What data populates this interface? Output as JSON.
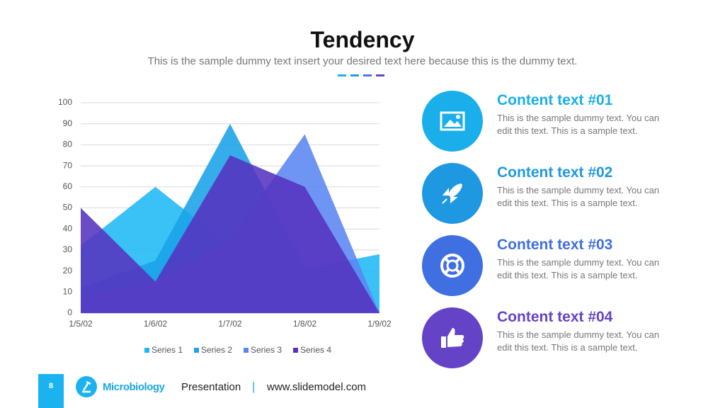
{
  "slide": {
    "title": "Tendency",
    "subtitle": "This is the sample dummy text insert your desired text here because this is the dummy text.",
    "page_number": "8",
    "brand": "Microbiology",
    "footer_label": "Presentation",
    "footer_separator": "|",
    "footer_url": "www.slidemodel.com"
  },
  "items": [
    {
      "title": "Content text #01",
      "text": "This is the sample dummy text. You can edit this text. This is a sample text.",
      "color": "#1aaeea"
    },
    {
      "title": "Content text #02",
      "text": "This is the sample dummy text. You can edit this text. This is a sample text.",
      "color": "#1f98e2"
    },
    {
      "title": "Content text #03",
      "text": "This is the sample dummy text. You can edit this text. This is a sample text.",
      "color": "#3f6fe0"
    },
    {
      "title": "Content text #04",
      "text": "This is the sample dummy text. You can edit this text. This is a sample text.",
      "color": "#6543c6"
    }
  ],
  "chart_data": {
    "type": "area",
    "categories": [
      "1/5/02",
      "1/6/02",
      "1/7/02",
      "1/8/02",
      "1/9/02"
    ],
    "series": [
      {
        "name": "Series 1",
        "color": "#1fb8f4",
        "values": [
          32,
          60,
          32,
          21,
          28
        ]
      },
      {
        "name": "Series 2",
        "color": "#1aa2e8",
        "values": [
          12,
          25,
          90,
          22,
          0
        ]
      },
      {
        "name": "Series 3",
        "color": "#5a86f2",
        "values": [
          8,
          15,
          35,
          85,
          0
        ]
      },
      {
        "name": "Series 4",
        "color": "#5533bf",
        "values": [
          50,
          15,
          75,
          60,
          0
        ]
      }
    ],
    "ylim": [
      0,
      100
    ],
    "yticks": [
      0,
      10,
      20,
      30,
      40,
      50,
      60,
      70,
      80,
      90,
      100
    ],
    "grid": true,
    "legend": "bottom"
  }
}
